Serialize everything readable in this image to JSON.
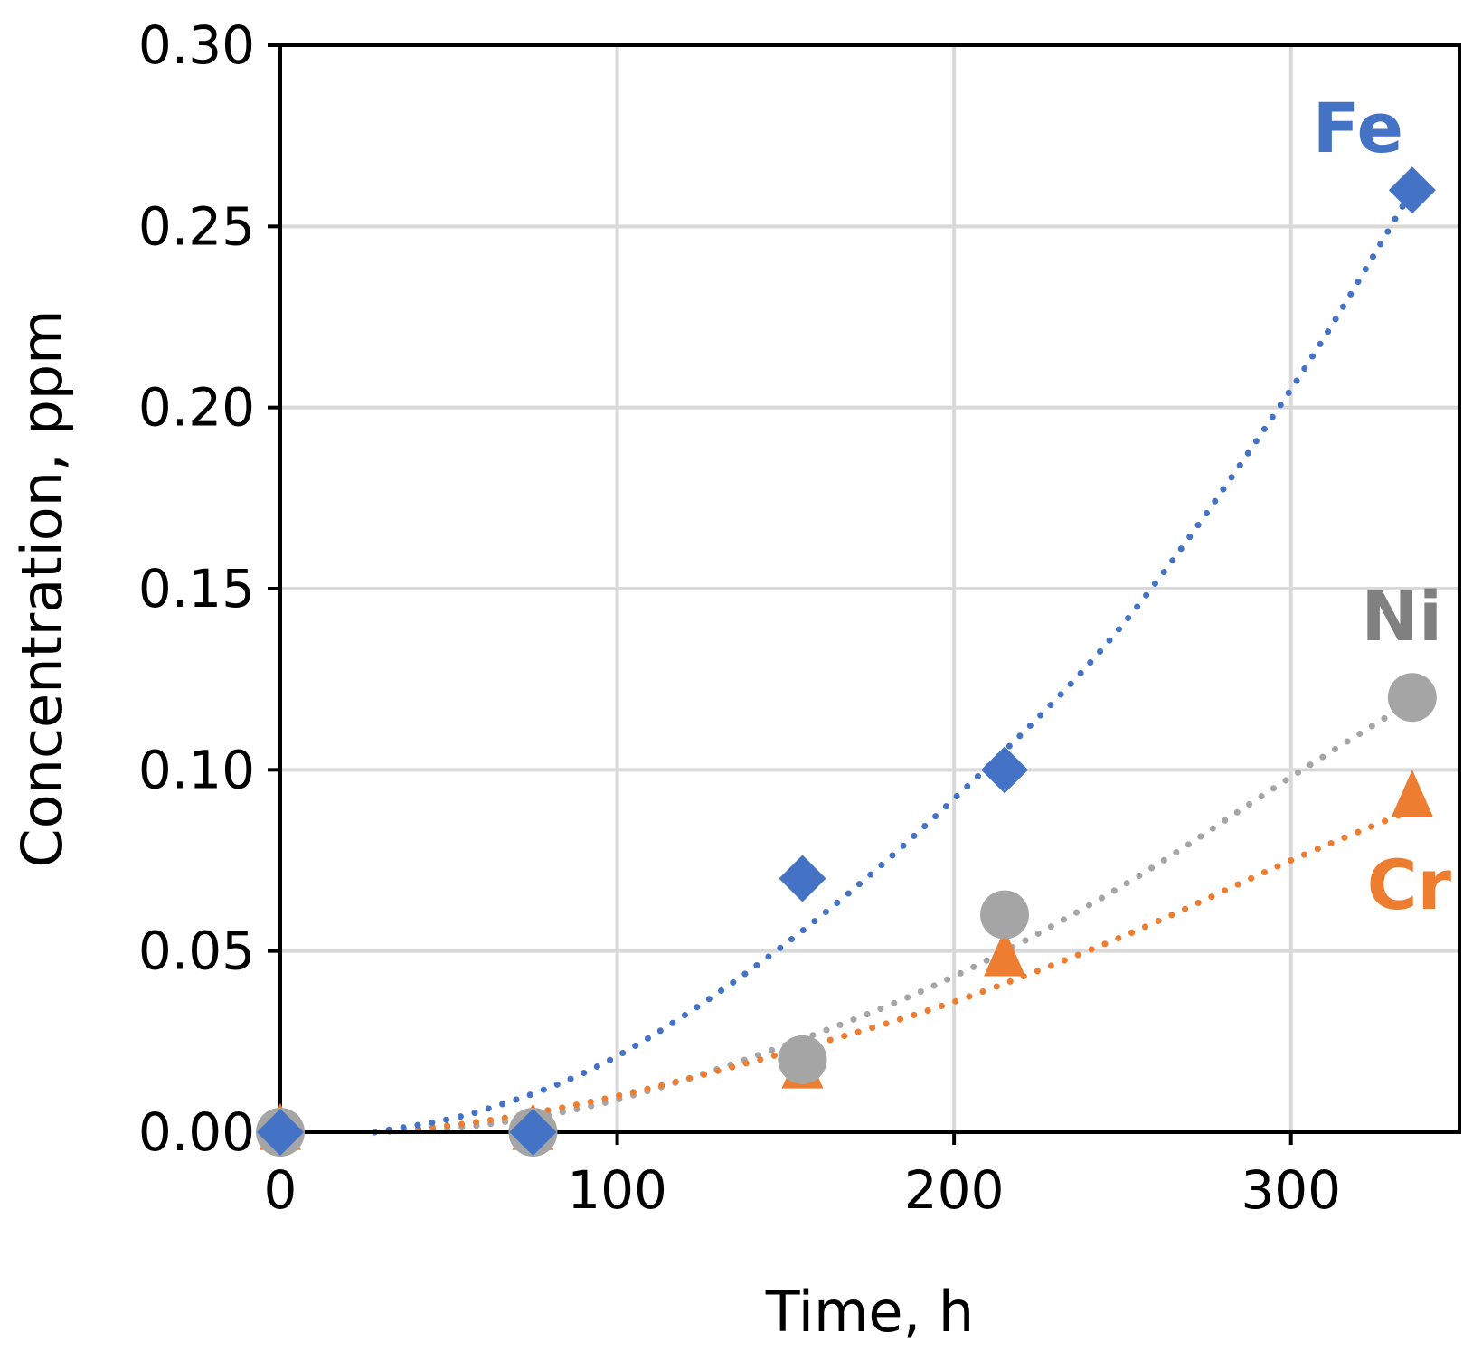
{
  "chart_data": {
    "type": "scatter",
    "title": "",
    "xlabel": "Time, h",
    "ylabel": "Concentration, ppm",
    "xlim": [
      0,
      350
    ],
    "ylim": [
      0,
      0.3
    ],
    "xticks": [
      0,
      100,
      200,
      300
    ],
    "yticks": [
      0.0,
      0.05,
      0.1,
      0.15,
      0.2,
      0.25,
      0.3
    ],
    "xtick_labels": [
      "0",
      "100",
      "200",
      "300"
    ],
    "ytick_labels": [
      "0.00",
      "0.05",
      "0.10",
      "0.15",
      "0.20",
      "0.25",
      "0.30"
    ],
    "grid": true,
    "series": [
      {
        "name": "Fe",
        "label": "Fe",
        "marker": "diamond",
        "color": "#4472C4",
        "x": [
          0,
          75,
          155,
          215,
          336
        ],
        "y": [
          0.0,
          0.0,
          0.07,
          0.1,
          0.26
        ],
        "trendline": {
          "style": "dotted",
          "x": [
            28,
            60,
            100,
            150,
            200,
            250,
            300,
            336
          ],
          "y": [
            0.0,
            0.006,
            0.021,
            0.052,
            0.092,
            0.14,
            0.205,
            0.26
          ]
        }
      },
      {
        "name": "Cr",
        "label": "Cr",
        "marker": "triangle",
        "color": "#ED7D31",
        "x": [
          0,
          75,
          155,
          215,
          336
        ],
        "y": [
          0.0,
          0.0,
          0.017,
          0.048,
          0.092
        ],
        "trendline": {
          "style": "dotted",
          "x": [
            28,
            60,
            100,
            150,
            200,
            250,
            300,
            336
          ],
          "y": [
            0.0,
            0.003,
            0.01,
            0.022,
            0.036,
            0.054,
            0.075,
            0.089
          ]
        }
      },
      {
        "name": "Ni",
        "label": "Ni",
        "marker": "circle",
        "color": "#A5A5A5",
        "x": [
          0,
          75,
          155,
          215,
          336
        ],
        "y": [
          0.0,
          0.0,
          0.02,
          0.06,
          0.12
        ],
        "trendline": {
          "style": "dotted",
          "x": [
            28,
            60,
            100,
            150,
            200,
            250,
            300,
            336
          ],
          "y": [
            0.0,
            0.002,
            0.009,
            0.024,
            0.043,
            0.068,
            0.098,
            0.119
          ]
        }
      }
    ]
  }
}
